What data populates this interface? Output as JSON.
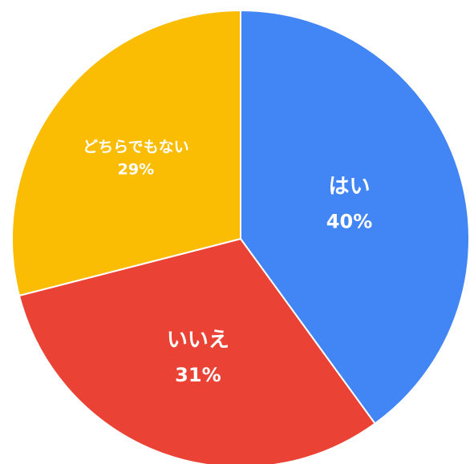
{
  "chart_data": {
    "type": "pie",
    "start_angle_deg": 0,
    "direction": "clockwise",
    "slices": [
      {
        "label": "はい",
        "value": 40,
        "percent_label": "40%",
        "color": "#4285f4"
      },
      {
        "label": "いいえ",
        "value": 31,
        "percent_label": "31%",
        "color": "#ea4335"
      },
      {
        "label": "どちらでもない",
        "value": 29,
        "percent_label": "29%",
        "color": "#fbbc04"
      }
    ]
  }
}
